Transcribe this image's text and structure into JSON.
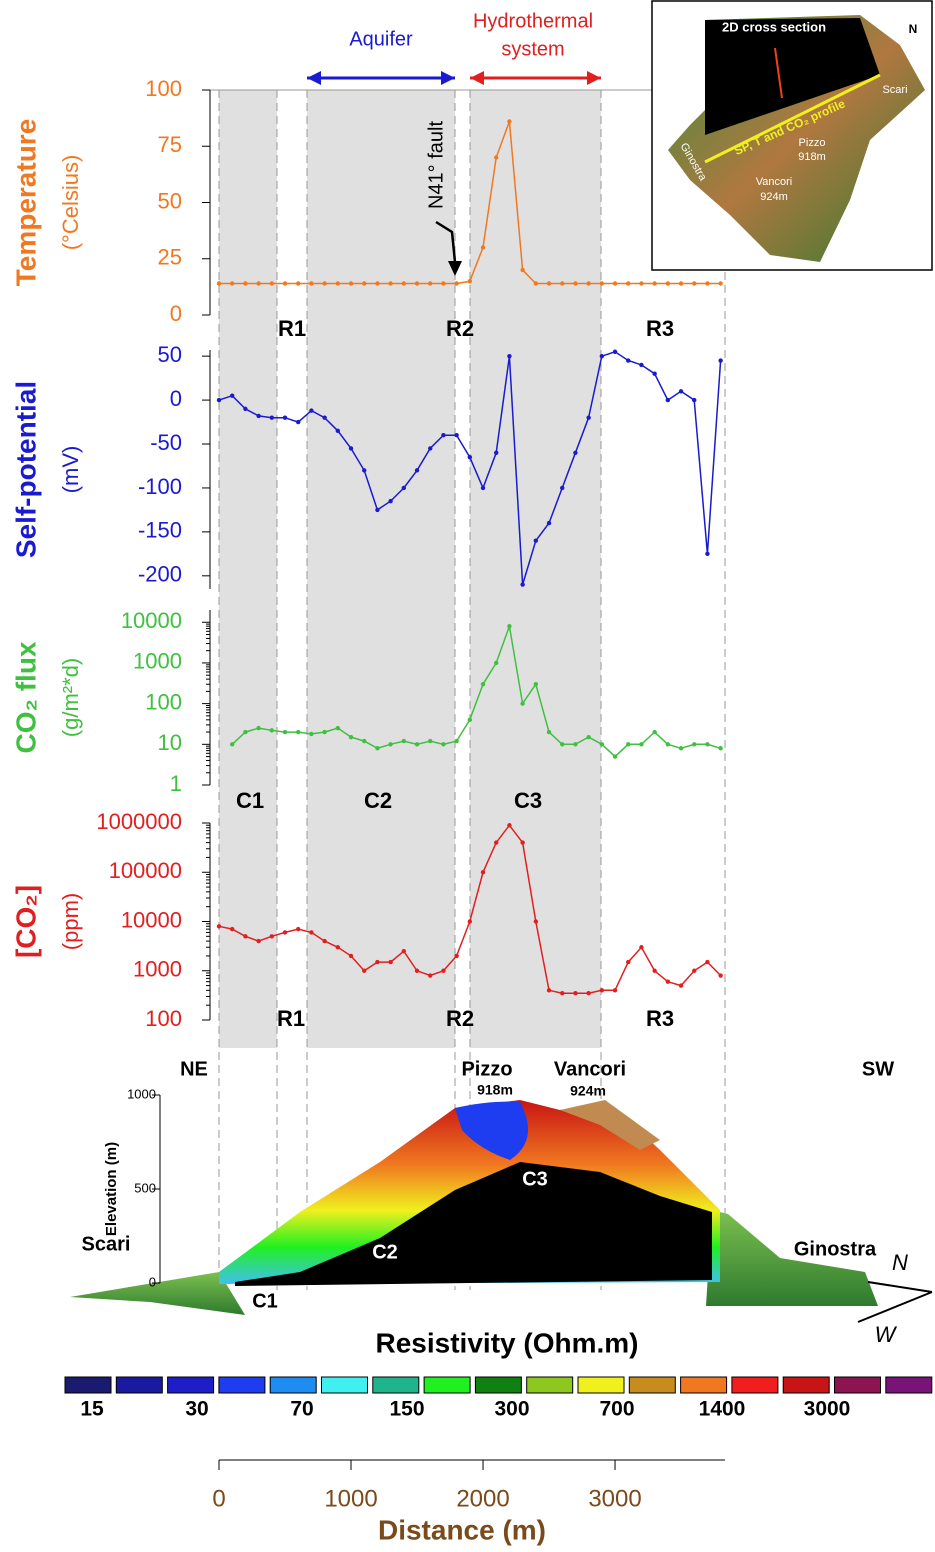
{
  "chart_data": [
    {
      "type": "line",
      "ylabel": "Temperature",
      "yunit": "(°Celsius)",
      "ylim": [
        0,
        100
      ],
      "yticks": [
        0,
        25,
        50,
        75,
        100
      ],
      "x": [
        0,
        100,
        200,
        300,
        400,
        500,
        600,
        700,
        800,
        900,
        1000,
        1100,
        1200,
        1300,
        1400,
        1500,
        1600,
        1700,
        1800,
        1900,
        2000,
        2100,
        2200,
        2300,
        2400,
        2500,
        2600,
        2700,
        2800,
        2900,
        3000,
        3100,
        3200,
        3300,
        3400,
        3500,
        3600,
        3700,
        3800
      ],
      "series": [
        {
          "color": "#f07820",
          "values": [
            14,
            14,
            14,
            14,
            14,
            14,
            14,
            14,
            14,
            14,
            14,
            14,
            14,
            14,
            14,
            14,
            14,
            14,
            14,
            15,
            30,
            70,
            86,
            20,
            14,
            14,
            14,
            14,
            14,
            14,
            14,
            14,
            14,
            14,
            14,
            14,
            14,
            14,
            14
          ]
        }
      ]
    },
    {
      "type": "line",
      "ylabel": "Self-potential",
      "yunit": "(mV)",
      "ylim": [
        -215,
        57
      ],
      "yticks": [
        50,
        0,
        -50,
        -100,
        -150,
        -200
      ],
      "x": [
        0,
        100,
        200,
        300,
        400,
        500,
        600,
        700,
        800,
        900,
        1000,
        1100,
        1200,
        1300,
        1400,
        1500,
        1600,
        1700,
        1800,
        1900,
        2000,
        2100,
        2200,
        2300,
        2400,
        2500,
        2600,
        2700,
        2800,
        2900,
        3000,
        3100,
        3200,
        3300,
        3400,
        3500,
        3600,
        3700,
        3800
      ],
      "series": [
        {
          "color": "#1a1ad0",
          "values": [
            0,
            5,
            -10,
            -18,
            -20,
            -20,
            -25,
            -12,
            -20,
            -35,
            -55,
            -80,
            -125,
            -115,
            -100,
            -80,
            -55,
            -40,
            -40,
            -65,
            -100,
            -60,
            50,
            -210,
            -160,
            -140,
            -100,
            -60,
            -20,
            50,
            55,
            45,
            40,
            30,
            0,
            10,
            0,
            -175,
            45
          ]
        }
      ]
    },
    {
      "type": "line",
      "log": true,
      "ylabel": "CO₂ flux",
      "yunit": "(g/m²*d)",
      "ylim": [
        1,
        20000
      ],
      "yticks": [
        1,
        10,
        100,
        1000,
        10000
      ],
      "x": [
        0,
        100,
        200,
        300,
        400,
        500,
        600,
        700,
        800,
        900,
        1000,
        1100,
        1200,
        1300,
        1400,
        1500,
        1600,
        1700,
        1800,
        1900,
        2000,
        2100,
        2200,
        2300,
        2400,
        2500,
        2600,
        2700,
        2800,
        2900,
        3000,
        3100,
        3200,
        3300,
        3400,
        3500,
        3600,
        3700,
        3800
      ],
      "series": [
        {
          "color": "#40c040",
          "values": [
            null,
            10,
            20,
            25,
            22,
            20,
            20,
            18,
            20,
            25,
            15,
            12,
            8,
            10,
            12,
            10,
            12,
            10,
            12,
            40,
            300,
            1000,
            8000,
            100,
            300,
            20,
            10,
            10,
            15,
            10,
            5,
            10,
            10,
            20,
            10,
            8,
            10,
            10,
            8
          ]
        }
      ]
    },
    {
      "type": "line",
      "log": true,
      "ylabel": "[CO₂]",
      "yunit": "(ppm)",
      "ylim": [
        100,
        1000000
      ],
      "yticks": [
        100,
        1000,
        10000,
        100000,
        1000000
      ],
      "x": [
        0,
        100,
        200,
        300,
        400,
        500,
        600,
        700,
        800,
        900,
        1000,
        1100,
        1200,
        1300,
        1400,
        1500,
        1600,
        1700,
        1800,
        1900,
        2000,
        2100,
        2200,
        2300,
        2400,
        2500,
        2600,
        2700,
        2800,
        2900,
        3000,
        3100,
        3200,
        3300,
        3400,
        3500,
        3600,
        3700,
        3800
      ],
      "series": [
        {
          "color": "#e02020",
          "values": [
            8000,
            7000,
            5000,
            4000,
            5000,
            6000,
            7000,
            6000,
            4000,
            3000,
            2000,
            1000,
            1500,
            1500,
            2500,
            1000,
            800,
            1000,
            2000,
            10000,
            100000,
            400000,
            900000,
            400000,
            10000,
            400,
            350,
            350,
            350,
            400,
            400,
            1500,
            3000,
            1000,
            600,
            500,
            1000,
            1500,
            800
          ]
        }
      ]
    },
    {
      "type": "section",
      "ylabel": "Elevation (m)",
      "ylim": [
        0,
        1000
      ],
      "yticks": [
        0,
        500,
        1000
      ]
    }
  ],
  "distance_axis": {
    "label": "Distance (m)",
    "xlim": [
      0,
      3833
    ],
    "xticks": [
      0,
      1000,
      2000,
      3000
    ]
  },
  "annotations": {
    "aquifer": "Aquifer",
    "hydro1": "Hydrothermal",
    "hydro2": "system",
    "fault": "N41° fault",
    "r_top": [
      "R1",
      "R2",
      "R3"
    ],
    "r_bottom": [
      "R1",
      "R2",
      "R3"
    ],
    "c_top": [
      "C1",
      "C2",
      "C3"
    ],
    "ne": "NE",
    "sw": "SW",
    "pizzo": "Pizzo",
    "pizzo_h": "918m",
    "vancori": "Vancori",
    "vancori_h": "924m",
    "scari": "Scari",
    "ginostra": "Ginostra",
    "north": "N",
    "west": "W",
    "c_section": [
      "C1",
      "C2",
      "C3"
    ]
  },
  "resistivity_legend": {
    "title": "Resistivity (Ohm.m)",
    "colors": [
      "#1a1a6e",
      "#1a1aa0",
      "#1e1ec8",
      "#1e3cf0",
      "#1e8cf0",
      "#40f0f0",
      "#20b48c",
      "#20f020",
      "#108010",
      "#8cc81e",
      "#f0f01e",
      "#c88c1e",
      "#f07820",
      "#f01e1e",
      "#c81414",
      "#8c1450",
      "#781478"
    ],
    "labels": [
      15,
      30,
      70,
      150,
      300,
      700,
      1400,
      3000
    ]
  },
  "inset": {
    "title": "2D cross section",
    "profile": "SP, T and CO₂ profile",
    "pizzo": "Pizzo",
    "pizzo_h": "918m",
    "vancori": "Vancori",
    "vancori_h": "924m",
    "ginostra": "Ginostra",
    "scari": "Scari",
    "north": "N"
  }
}
